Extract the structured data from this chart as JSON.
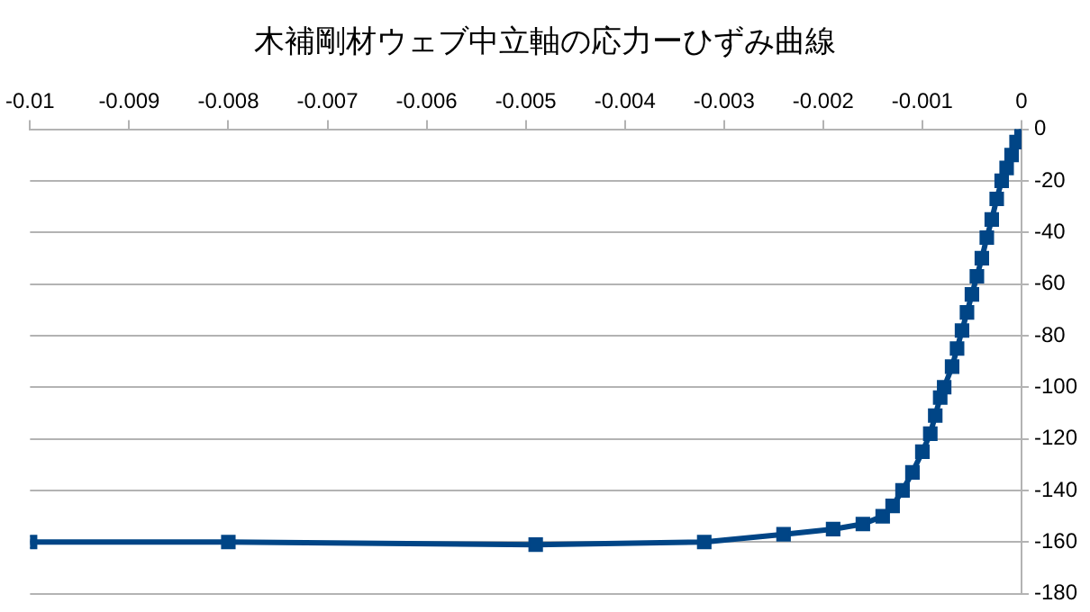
{
  "chart_data": {
    "type": "line",
    "title": "木補剛材ウェブ中立軸の応力ーひずみ曲線",
    "x": [
      -0.01,
      -0.008,
      -0.0049,
      -0.0032,
      -0.0024,
      -0.0019,
      -0.0016,
      -0.0014,
      -0.0013,
      -0.0012,
      -0.0011,
      -0.001,
      -0.00092,
      -0.00087,
      -0.00082,
      -0.00078,
      -0.0007,
      -0.00065,
      -0.0006,
      -0.00055,
      -0.0005,
      -0.00045,
      -0.0004,
      -0.00035,
      -0.0003,
      -0.00025,
      -0.0002,
      -0.00015,
      -0.0001,
      -5e-05,
      0
    ],
    "series": [
      {
        "color": "#004586",
        "values": [
          -160,
          -160,
          -161,
          -160,
          -157,
          -155,
          -153,
          -150,
          -146,
          -140,
          -133,
          -125,
          -118,
          -111,
          -104,
          -100,
          -92,
          -85,
          -78,
          -71,
          -64,
          -57,
          -50,
          -42,
          -35,
          -27,
          -20,
          -15,
          -10,
          -5,
          0
        ]
      }
    ],
    "xlim": [
      -0.01,
      0
    ],
    "xticks": [
      -0.01,
      -0.009,
      -0.008,
      -0.007,
      -0.006,
      -0.005,
      -0.004,
      -0.003,
      -0.002,
      -0.001,
      0
    ],
    "ylim": [
      -180,
      0
    ],
    "yticks": [
      -180,
      -160,
      -140,
      -120,
      -100,
      -80,
      -60,
      -40,
      -20,
      0
    ],
    "grid": "y",
    "legend": false,
    "marker": "square",
    "line_style": "solid"
  }
}
